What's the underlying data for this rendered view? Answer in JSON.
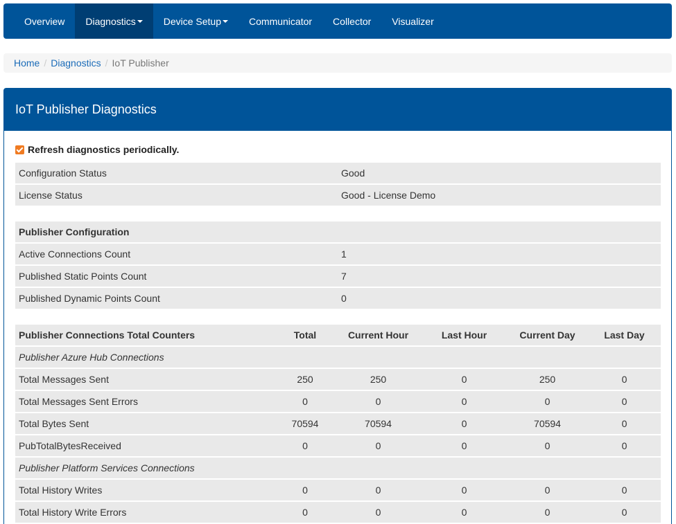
{
  "nav": {
    "items": [
      {
        "label": "Overview",
        "dropdown": false,
        "active": false
      },
      {
        "label": "Diagnostics",
        "dropdown": true,
        "active": true
      },
      {
        "label": "Device Setup",
        "dropdown": true,
        "active": false
      },
      {
        "label": "Communicator",
        "dropdown": false,
        "active": false
      },
      {
        "label": "Collector",
        "dropdown": false,
        "active": false
      },
      {
        "label": "Visualizer",
        "dropdown": false,
        "active": false
      }
    ]
  },
  "breadcrumb": {
    "home": "Home",
    "section": "Diagnostics",
    "current": "IoT Publisher"
  },
  "panel": {
    "title": "IoT Publisher Diagnostics"
  },
  "refresh": {
    "label": "Refresh diagnostics periodically.",
    "checked": true
  },
  "status": [
    {
      "label": "Configuration Status",
      "value": "Good"
    },
    {
      "label": "License Status",
      "value": "Good - License Demo"
    }
  ],
  "config": {
    "heading": "Publisher Configuration",
    "rows": [
      {
        "label": "Active Connections Count",
        "value": "1"
      },
      {
        "label": "Published Static Points Count",
        "value": "7"
      },
      {
        "label": "Published Dynamic Points Count",
        "value": "0"
      }
    ]
  },
  "counters": {
    "headers": [
      "Publisher Connections Total Counters",
      "Total",
      "Current Hour",
      "Last Hour",
      "Current Day",
      "Last Day"
    ],
    "group1": "Publisher Azure Hub Connections",
    "rows1": [
      [
        "Total Messages Sent",
        "250",
        "250",
        "0",
        "250",
        "0"
      ],
      [
        "Total Messages Sent Errors",
        "0",
        "0",
        "0",
        "0",
        "0"
      ],
      [
        "Total Bytes Sent",
        "70594",
        "70594",
        "0",
        "70594",
        "0"
      ],
      [
        "PubTotalBytesReceived",
        "0",
        "0",
        "0",
        "0",
        "0"
      ]
    ],
    "group2": "Publisher Platform Services Connections",
    "rows2": [
      [
        "Total History Writes",
        "0",
        "0",
        "0",
        "0",
        "0"
      ],
      [
        "Total History Write Errors",
        "0",
        "0",
        "0",
        "0",
        "0"
      ]
    ]
  },
  "colors": {
    "brand": "#005499",
    "checkbox": "#f07b22",
    "row_bg": "#e9e9e9"
  }
}
